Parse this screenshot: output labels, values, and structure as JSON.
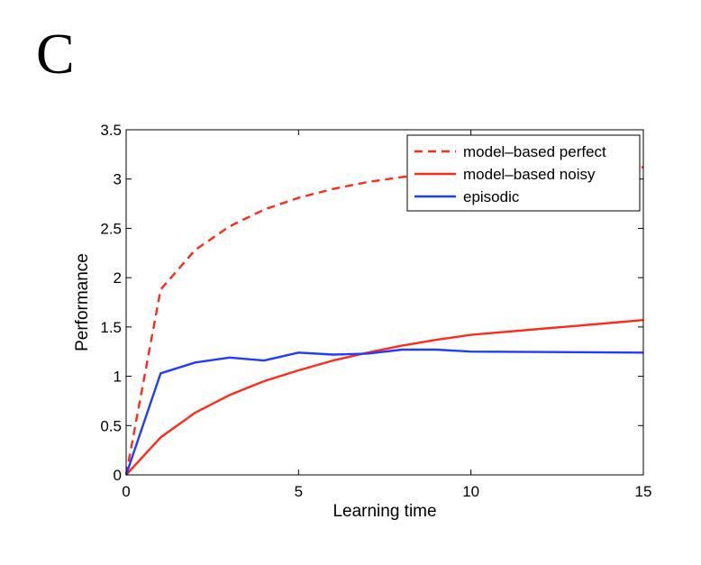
{
  "panel_label": "C",
  "chart_data": {
    "type": "line",
    "title": "",
    "xlabel": "Learning time",
    "ylabel": "Performance",
    "xlim": [
      0,
      15
    ],
    "ylim": [
      0,
      3.5
    ],
    "xticks": [
      0,
      5,
      10,
      15
    ],
    "xtick_labels": [
      "0",
      "5",
      "10",
      "15"
    ],
    "yticks": [
      0,
      0.5,
      1,
      1.5,
      2,
      2.5,
      3,
      3.5
    ],
    "ytick_labels": [
      "0",
      "0.5",
      "1",
      "1.5",
      "2",
      "2.5",
      "3",
      "3.5"
    ],
    "grid": false,
    "legend_position": "top-right",
    "series": [
      {
        "name": "model–based perfect",
        "color": "#ff2a1a",
        "dash": "dashed",
        "x": [
          0,
          1,
          2,
          3,
          4,
          5,
          6,
          7,
          8,
          9,
          10,
          11,
          12,
          13,
          14,
          15
        ],
        "y": [
          0,
          1.88,
          2.28,
          2.52,
          2.69,
          2.81,
          2.9,
          2.97,
          3.02,
          3.06,
          3.08,
          3.1,
          3.11,
          3.12,
          3.12,
          3.12
        ]
      },
      {
        "name": "model–based noisy",
        "color": "#ff2a1a",
        "dash": "solid",
        "x": [
          0,
          1,
          2,
          3,
          4,
          5,
          6,
          7,
          8,
          9,
          10,
          11,
          12,
          13,
          14,
          15
        ],
        "y": [
          0,
          0.38,
          0.63,
          0.81,
          0.95,
          1.06,
          1.16,
          1.24,
          1.31,
          1.37,
          1.42,
          1.45,
          1.48,
          1.51,
          1.54,
          1.57
        ]
      },
      {
        "name": "episodic",
        "color": "#1f3cff",
        "dash": "solid",
        "x": [
          0,
          1,
          2,
          3,
          4,
          5,
          6,
          7,
          8,
          9,
          10,
          15
        ],
        "y": [
          0,
          1.03,
          1.14,
          1.19,
          1.16,
          1.24,
          1.22,
          1.23,
          1.27,
          1.27,
          1.25,
          1.24
        ]
      }
    ]
  }
}
